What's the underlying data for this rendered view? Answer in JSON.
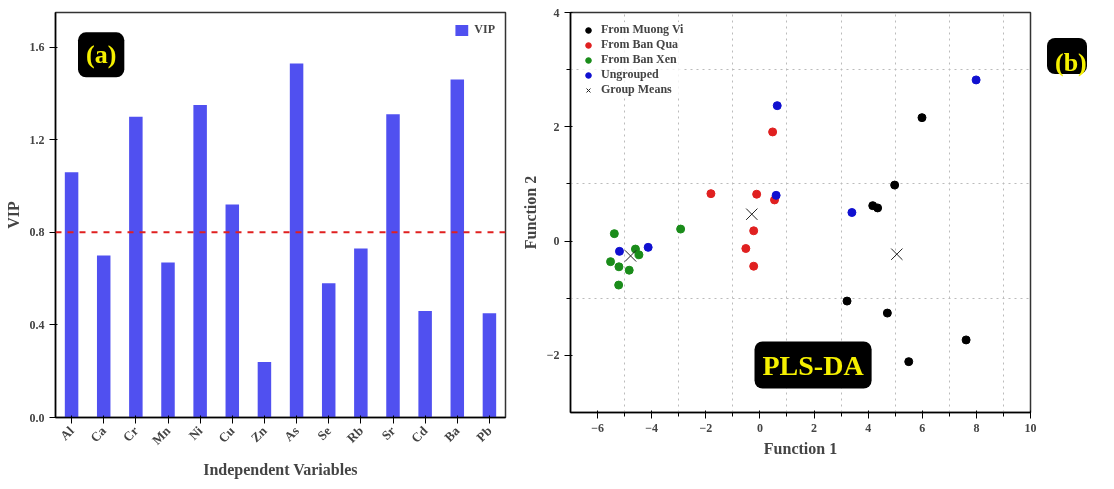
{
  "chart_data": [
    {
      "type": "bar",
      "categories": [
        "Al",
        "Ca",
        "Cr",
        "Mn",
        "Ni",
        "Cu",
        "Zn",
        "As",
        "Se",
        "Rb",
        "Sr",
        "Cd",
        "Ba",
        "Pb"
      ],
      "series": [
        {
          "name": "VIP",
          "color": "#5050f0",
          "values": [
            1.06,
            0.7,
            1.3,
            0.67,
            1.35,
            0.92,
            0.24,
            1.53,
            0.58,
            0.73,
            1.31,
            0.46,
            1.46,
            0.45
          ]
        }
      ],
      "xlabel": "Independent Variables",
      "ylabel": "VIP",
      "ylim": [
        0,
        1.75
      ],
      "yticks": [
        {
          "value": 0,
          "label": "0.0"
        },
        0.4,
        0.8,
        1.2,
        1.6
      ],
      "ref_lines": [
        {
          "axis": "y",
          "value": 0.8,
          "color": "#e02020",
          "line_style": "dashed"
        }
      ],
      "legend": "top right",
      "annotations": [
        "(a)"
      ]
    },
    {
      "type": "scatter",
      "xlabel": "Function 1",
      "ylabel": "Function 2",
      "xlim": [
        -7,
        10
      ],
      "ylim": [
        -3,
        4
      ],
      "xticks": [
        -6,
        -4,
        -2,
        0,
        2,
        4,
        6,
        8,
        10
      ],
      "yticks": [
        -2,
        0,
        2,
        4
      ],
      "grid": true,
      "legend": "top left",
      "marker": "circle",
      "series": [
        {
          "name": "From Muong Vi",
          "color": "#000000",
          "x": [
            5.99,
            4.98,
            4.17,
            4.35,
            3.22,
            4.71,
            7.62,
            5.5
          ],
          "values": [
            2.16,
            0.98,
            0.62,
            0.58,
            -1.05,
            -1.26,
            -1.73,
            -2.11
          ]
        },
        {
          "name": "From Ban Qua",
          "color": "#e02020",
          "x": [
            0.47,
            -1.81,
            -0.12,
            0.54,
            -0.23,
            -0.52,
            -0.23
          ],
          "values": [
            1.91,
            0.83,
            0.82,
            0.72,
            0.18,
            -0.13,
            -0.44
          ]
        },
        {
          "name": "From Ban Xen",
          "color": "#1a8c1a",
          "x": [
            -5.38,
            -2.93,
            -4.6,
            -4.47,
            -5.52,
            -5.21,
            -4.83,
            -5.22
          ],
          "values": [
            0.13,
            0.21,
            -0.14,
            -0.24,
            -0.36,
            -0.45,
            -0.51,
            -0.77
          ]
        },
        {
          "name": "Ungrouped",
          "color": "#1010d0",
          "x": [
            7.99,
            0.64,
            0.6,
            3.4,
            -5.19,
            -4.13
          ],
          "values": [
            2.82,
            2.37,
            0.8,
            0.5,
            -0.18,
            -0.11
          ]
        },
        {
          "name": "Group Means",
          "color": "#222222",
          "marker": "cross",
          "x": [
            -0.3,
            -4.78,
            5.06
          ],
          "values": [
            0.47,
            -0.26,
            -0.23
          ]
        }
      ],
      "annotations": [
        "(b)",
        "PLS-DA"
      ]
    }
  ]
}
